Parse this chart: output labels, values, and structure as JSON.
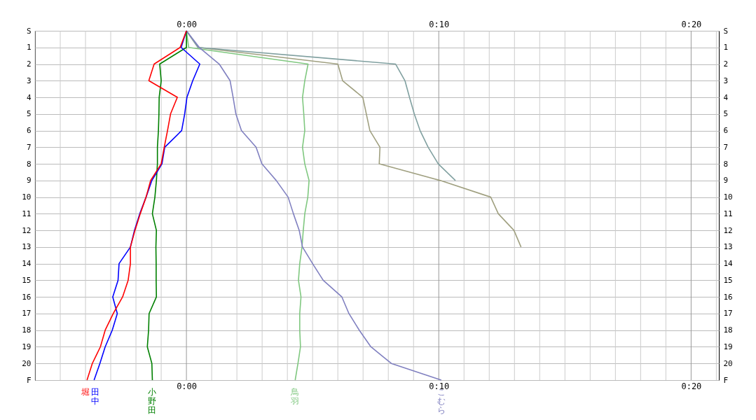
{
  "chart_data": {
    "type": "line",
    "grid": true,
    "legend": false,
    "marker": "none",
    "line_style": "solid",
    "xlim": [
      -6,
      21.1
    ],
    "x2lim": [
      -6,
      21.1
    ],
    "ylim": [
      21,
      0
    ],
    "y2lim": [
      21,
      0
    ],
    "xticks": [
      {
        "value": -6,
        "label": null
      },
      {
        "value": -5,
        "label": null
      },
      {
        "value": -4,
        "label": null
      },
      {
        "value": -3,
        "label": null
      },
      {
        "value": -2,
        "label": null
      },
      {
        "value": -1,
        "label": null
      },
      {
        "value": 0,
        "label": "0:00"
      },
      {
        "value": 1,
        "label": null
      },
      {
        "value": 2,
        "label": null
      },
      {
        "value": 3,
        "label": null
      },
      {
        "value": 4,
        "label": null
      },
      {
        "value": 5,
        "label": null
      },
      {
        "value": 6,
        "label": null
      },
      {
        "value": 7,
        "label": null
      },
      {
        "value": 8,
        "label": null
      },
      {
        "value": 9,
        "label": null
      },
      {
        "value": 10,
        "label": "0:10"
      },
      {
        "value": 11,
        "label": null
      },
      {
        "value": 12,
        "label": null
      },
      {
        "value": 13,
        "label": null
      },
      {
        "value": 14,
        "label": null
      },
      {
        "value": 15,
        "label": null
      },
      {
        "value": 16,
        "label": null
      },
      {
        "value": 17,
        "label": null
      },
      {
        "value": 18,
        "label": null
      },
      {
        "value": 19,
        "label": null
      },
      {
        "value": 20,
        "label": "0:20"
      },
      {
        "value": 21,
        "label": null
      }
    ],
    "x2ticks": [
      {
        "value": 0,
        "label": "0:00"
      },
      {
        "value": 10,
        "label": "0:10"
      },
      {
        "value": 20,
        "label": "0:20"
      }
    ],
    "yticks": [
      {
        "value": 0,
        "label": "S"
      },
      1,
      2,
      3,
      4,
      5,
      6,
      7,
      8,
      9,
      10,
      11,
      12,
      13,
      14,
      15,
      16,
      17,
      18,
      19,
      20,
      {
        "value": 21,
        "label": "F"
      }
    ],
    "y2ticks": [
      {
        "value": 0,
        "label": "S"
      },
      1,
      2,
      3,
      4,
      5,
      6,
      7,
      8,
      9,
      10,
      11,
      12,
      13,
      14,
      15,
      16,
      17,
      18,
      19,
      20,
      {
        "value": 21,
        "label": "F"
      }
    ],
    "series": [
      {
        "color": "#a0a080",
        "x": [
          0,
          0.46,
          6.0,
          6.19,
          6.99,
          7.13,
          7.27,
          7.67,
          7.64,
          10.06,
          12.06,
          12.36,
          12.98,
          13.26
        ],
        "values": [
          0,
          1,
          2,
          3,
          4,
          5,
          6,
          7,
          8,
          9,
          10,
          11,
          12,
          13
        ]
      },
      {
        "color": "#80a0a0",
        "x": [
          0,
          0.46,
          8.29,
          8.66,
          8.84,
          9.03,
          9.26,
          9.58,
          9.98,
          10.66
        ],
        "values": [
          0,
          1,
          2,
          3,
          4,
          5,
          6,
          7,
          8,
          9
        ]
      },
      {
        "name": "鳥羽",
        "color": "#80c880",
        "x": [
          0,
          0.09,
          4.82,
          4.69,
          4.6,
          4.65,
          4.69,
          4.6,
          4.69,
          4.86,
          4.81,
          4.69,
          4.63,
          4.58,
          4.49,
          4.44,
          4.54,
          4.49,
          4.49,
          4.52,
          4.42,
          4.31
        ],
        "values": [
          0,
          1,
          2,
          3,
          4,
          5,
          6,
          7,
          8,
          9,
          10,
          11,
          12,
          13,
          14,
          15,
          16,
          17,
          18,
          19,
          20,
          21
        ]
      },
      {
        "name": "こむら",
        "color": "#8080c0",
        "x": [
          0,
          0.51,
          1.3,
          1.73,
          1.85,
          1.96,
          2.18,
          2.76,
          2.99,
          3.56,
          4.03,
          4.24,
          4.47,
          4.6,
          5.0,
          5.42,
          6.16,
          6.44,
          6.85,
          7.31,
          8.12,
          10.1
        ],
        "values": [
          0,
          1,
          2,
          3,
          4,
          5,
          6,
          7,
          8,
          9,
          10,
          11,
          12,
          13,
          14,
          15,
          16,
          17,
          18,
          19,
          20,
          21
        ]
      },
      {
        "name": "小野田",
        "color": "#008000",
        "x": [
          0,
          0,
          -1.06,
          -1.0,
          -1.08,
          -1.09,
          -1.11,
          -1.15,
          -1.15,
          -1.19,
          -1.25,
          -1.35,
          -1.19,
          -1.21,
          -1.2,
          -1.2,
          -1.19,
          -1.48,
          -1.5,
          -1.55,
          -1.37,
          -1.35
        ],
        "values": [
          0,
          1,
          2,
          3,
          4,
          5,
          6,
          7,
          8,
          9,
          10,
          11,
          12,
          13,
          14,
          15,
          16,
          17,
          18,
          19,
          20,
          21
        ]
      },
      {
        "name": "田中",
        "color": "#0000ff",
        "x": [
          0,
          -0.21,
          0.53,
          0.25,
          0.02,
          -0.07,
          -0.19,
          -0.86,
          -0.97,
          -1.37,
          -1.6,
          -1.85,
          -2.06,
          -2.22,
          -2.67,
          -2.71,
          -2.92,
          -2.74,
          -2.94,
          -3.22,
          -3.43,
          -3.66
        ],
        "values": [
          0,
          1,
          2,
          3,
          4,
          5,
          6,
          7,
          8,
          9,
          10,
          11,
          12,
          13,
          14,
          15,
          16,
          17,
          18,
          19,
          20,
          21
        ]
      },
      {
        "name": "堀",
        "color": "#ff0000",
        "x": [
          0,
          -0.25,
          -1.28,
          -1.49,
          -0.36,
          -0.63,
          -0.75,
          -0.88,
          -1.0,
          -1.42,
          -1.6,
          -1.83,
          -2.04,
          -2.22,
          -2.22,
          -2.31,
          -2.53,
          -2.9,
          -3.22,
          -3.41,
          -3.73,
          -3.94
        ],
        "values": [
          0,
          1,
          2,
          3,
          4,
          5,
          6,
          7,
          8,
          9,
          10,
          11,
          12,
          13,
          14,
          15,
          16,
          17,
          18,
          19,
          20,
          21
        ]
      }
    ]
  }
}
